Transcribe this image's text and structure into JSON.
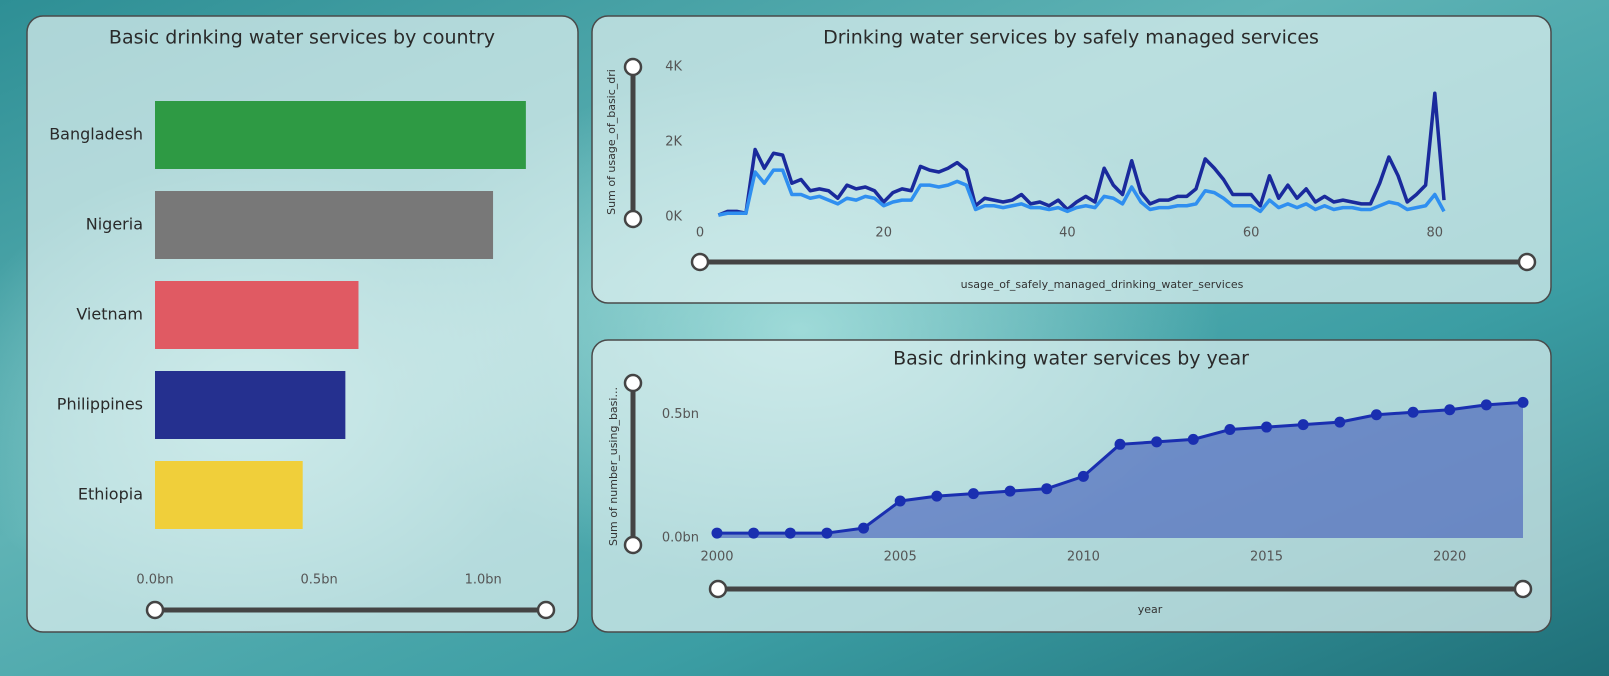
{
  "chart_data": [
    {
      "type": "hbar",
      "title": "Basic drinking water services by country",
      "categories": [
        "Bangladesh",
        "Nigeria",
        "Vietnam",
        "Philippines",
        "Ethiopia"
      ],
      "values": [
        1.13,
        1.03,
        0.62,
        0.58,
        0.45
      ],
      "colors": [
        "#2e9a44",
        "#787878",
        "#e05a63",
        "#25308f",
        "#f0cf3a"
      ],
      "xlim": [
        0,
        1.17
      ],
      "xticks": [
        {
          "value": 0,
          "label": "0.0bn"
        },
        {
          "value": 0.5,
          "label": "0.5bn"
        },
        {
          "value": 1.0,
          "label": "1.0bn"
        }
      ]
    },
    {
      "type": "line",
      "title": "Drinking water services by safely managed services",
      "x_label": "usage_of_safely_managed_drinking_water_services",
      "y_label": "Sum of usage_of_basic_dri",
      "x": [
        2,
        3,
        4,
        5,
        6,
        7,
        8,
        9,
        10,
        11,
        12,
        13,
        14,
        15,
        16,
        17,
        18,
        19,
        20,
        21,
        22,
        23,
        24,
        25,
        26,
        27,
        28,
        29,
        30,
        31,
        32,
        33,
        34,
        35,
        36,
        37,
        38,
        39,
        40,
        41,
        42,
        43,
        44,
        45,
        46,
        47,
        48,
        49,
        50,
        51,
        52,
        53,
        54,
        55,
        56,
        57,
        58,
        59,
        60,
        61,
        62,
        63,
        64,
        65,
        66,
        67,
        68,
        69,
        70,
        71,
        72,
        73,
        74,
        75,
        76,
        77,
        78,
        79,
        80,
        81
      ],
      "series": [
        {
          "color": "#1a2a9c",
          "values": [
            50,
            150,
            150,
            100,
            1800,
            1300,
            1700,
            1650,
            900,
            1000,
            700,
            750,
            700,
            500,
            850,
            750,
            800,
            700,
            400,
            650,
            750,
            700,
            1350,
            1250,
            1200,
            1300,
            1450,
            1250,
            300,
            500,
            450,
            400,
            450,
            600,
            350,
            400,
            300,
            450,
            200,
            400,
            550,
            400,
            1300,
            850,
            600,
            1500,
            650,
            350,
            450,
            450,
            550,
            550,
            750,
            1550,
            1300,
            1000,
            600,
            600,
            600,
            300,
            1100,
            500,
            850,
            500,
            750,
            400,
            550,
            400,
            450,
            400,
            350,
            350,
            900,
            1600,
            1100,
            400,
            600,
            850,
            3300,
            450
          ]
        },
        {
          "color": "#2f8ff0",
          "values": [
            50,
            100,
            100,
            100,
            1200,
            900,
            1250,
            1250,
            600,
            600,
            500,
            550,
            450,
            350,
            500,
            450,
            550,
            500,
            300,
            400,
            450,
            450,
            850,
            850,
            800,
            850,
            950,
            850,
            200,
            300,
            300,
            250,
            300,
            350,
            250,
            250,
            200,
            250,
            150,
            250,
            300,
            250,
            550,
            500,
            350,
            800,
            400,
            200,
            250,
            250,
            300,
            300,
            350,
            700,
            650,
            500,
            300,
            300,
            300,
            150,
            450,
            250,
            350,
            250,
            350,
            200,
            300,
            200,
            250,
            250,
            200,
            200,
            300,
            400,
            350,
            200,
            250,
            300,
            600,
            150
          ]
        }
      ],
      "xlim": [
        0,
        81
      ],
      "xticks": [
        0,
        20,
        40,
        60,
        80
      ],
      "ylim": [
        0,
        4000
      ],
      "yticks": [
        {
          "value": 0,
          "label": "0K"
        },
        {
          "value": 2000,
          "label": "2K"
        },
        {
          "value": 4000,
          "label": "4K"
        }
      ]
    },
    {
      "type": "area",
      "title": "Basic drinking water services by year",
      "x_label": "year",
      "y_label": "Sum of number_using_basi...",
      "x": [
        2000,
        2001,
        2002,
        2003,
        2004,
        2005,
        2006,
        2007,
        2008,
        2009,
        2010,
        2011,
        2012,
        2013,
        2014,
        2015,
        2016,
        2017,
        2018,
        2019,
        2020,
        2021,
        2022
      ],
      "values": [
        0.02,
        0.02,
        0.02,
        0.02,
        0.04,
        0.15,
        0.17,
        0.18,
        0.19,
        0.2,
        0.25,
        0.38,
        0.39,
        0.4,
        0.44,
        0.45,
        0.46,
        0.47,
        0.5,
        0.51,
        0.52,
        0.54,
        0.55
      ],
      "color": "#1a2fb0",
      "xlim": [
        2000,
        2022
      ],
      "xticks": [
        2000,
        2005,
        2010,
        2015,
        2020
      ],
      "ylim": [
        0,
        0.58
      ],
      "yticks": [
        {
          "value": 0,
          "label": "0.0bn"
        },
        {
          "value": 0.5,
          "label": "0.5bn"
        }
      ]
    }
  ]
}
